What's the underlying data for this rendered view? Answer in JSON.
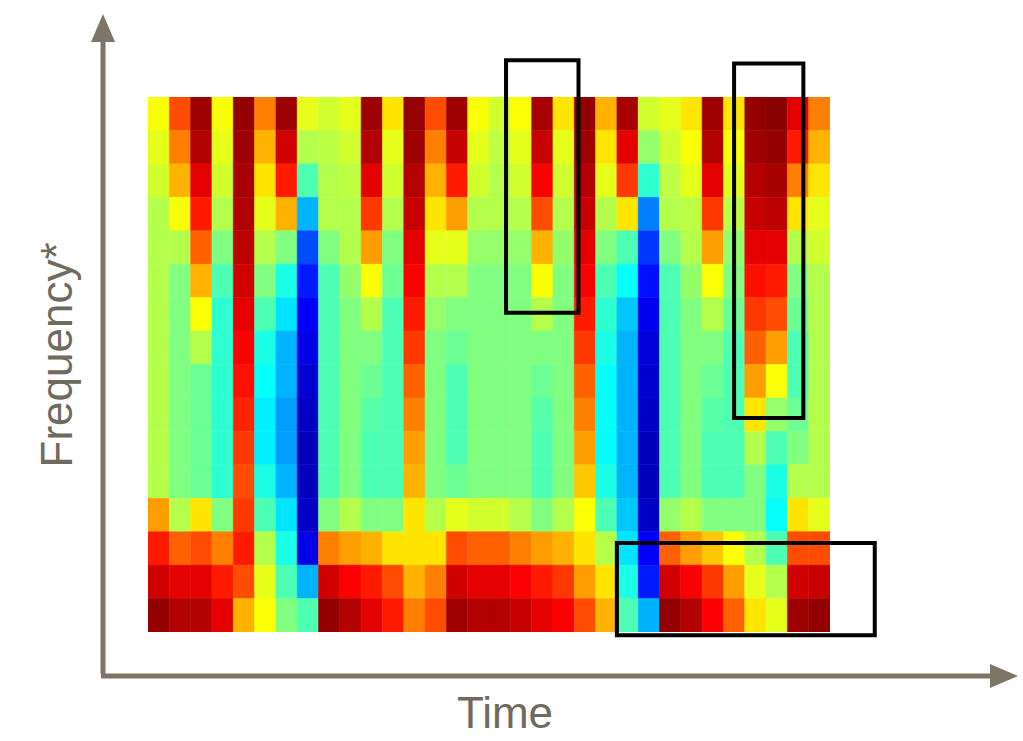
{
  "chart_data": {
    "type": "heatmap",
    "x_label": "Time",
    "y_label": "Frequency*",
    "tick_labels": false,
    "xlim": [
      0,
      32
    ],
    "ylim": [
      0,
      16
    ],
    "color_range": [
      0,
      1
    ],
    "x": [
      0,
      1,
      2,
      3,
      4,
      5,
      6,
      7,
      8,
      9,
      10,
      11,
      12,
      13,
      14,
      15,
      16,
      17,
      18,
      19,
      20,
      21,
      22,
      23,
      24,
      25,
      26,
      27,
      28,
      29,
      30,
      31
    ],
    "y": [
      15,
      14,
      13,
      12,
      11,
      10,
      9,
      8,
      7,
      6,
      5,
      4,
      3,
      2,
      1,
      0
    ],
    "cells": [
      [
        0.62,
        0.6,
        0.58,
        0.55,
        0.55,
        0.55,
        0.55,
        0.55,
        0.55,
        0.55,
        0.55,
        0.55,
        0.72,
        0.85,
        0.92,
        0.98
      ],
      [
        0.8,
        0.75,
        0.7,
        0.62,
        0.55,
        0.5,
        0.5,
        0.5,
        0.5,
        0.5,
        0.5,
        0.5,
        0.55,
        0.78,
        0.9,
        0.95
      ],
      [
        0.97,
        0.95,
        0.9,
        0.85,
        0.78,
        0.7,
        0.62,
        0.55,
        0.48,
        0.48,
        0.48,
        0.48,
        0.65,
        0.8,
        0.9,
        0.95
      ],
      [
        0.62,
        0.6,
        0.58,
        0.55,
        0.5,
        0.45,
        0.42,
        0.42,
        0.42,
        0.42,
        0.42,
        0.42,
        0.5,
        0.75,
        0.85,
        0.9
      ],
      [
        0.98,
        0.97,
        0.96,
        0.95,
        0.94,
        0.92,
        0.9,
        0.88,
        0.86,
        0.84,
        0.82,
        0.8,
        0.82,
        0.85,
        0.8,
        0.7
      ],
      [
        0.75,
        0.7,
        0.65,
        0.6,
        0.55,
        0.5,
        0.45,
        0.4,
        0.38,
        0.36,
        0.36,
        0.4,
        0.45,
        0.55,
        0.6,
        0.62
      ],
      [
        0.97,
        0.92,
        0.85,
        0.7,
        0.5,
        0.4,
        0.35,
        0.3,
        0.3,
        0.28,
        0.28,
        0.3,
        0.35,
        0.4,
        0.45,
        0.5
      ],
      [
        0.6,
        0.55,
        0.45,
        0.3,
        0.2,
        0.15,
        0.12,
        0.1,
        0.08,
        0.07,
        0.06,
        0.06,
        0.07,
        0.1,
        0.3,
        0.45
      ],
      [
        0.58,
        0.56,
        0.55,
        0.55,
        0.5,
        0.45,
        0.45,
        0.45,
        0.45,
        0.45,
        0.45,
        0.45,
        0.5,
        0.75,
        0.92,
        0.98
      ],
      [
        0.6,
        0.58,
        0.56,
        0.55,
        0.55,
        0.52,
        0.5,
        0.5,
        0.5,
        0.5,
        0.5,
        0.5,
        0.55,
        0.72,
        0.88,
        0.95
      ],
      [
        0.97,
        0.95,
        0.9,
        0.82,
        0.72,
        0.62,
        0.55,
        0.5,
        0.48,
        0.46,
        0.45,
        0.45,
        0.5,
        0.7,
        0.85,
        0.9
      ],
      [
        0.65,
        0.6,
        0.58,
        0.55,
        0.5,
        0.48,
        0.45,
        0.45,
        0.45,
        0.45,
        0.45,
        0.45,
        0.5,
        0.65,
        0.8,
        0.85
      ],
      [
        0.98,
        0.97,
        0.95,
        0.93,
        0.9,
        0.88,
        0.85,
        0.82,
        0.78,
        0.75,
        0.72,
        0.7,
        0.65,
        0.65,
        0.7,
        0.75
      ],
      [
        0.8,
        0.75,
        0.7,
        0.65,
        0.6,
        0.55,
        0.52,
        0.5,
        0.5,
        0.5,
        0.5,
        0.5,
        0.55,
        0.65,
        0.75,
        0.8
      ],
      [
        0.97,
        0.93,
        0.85,
        0.72,
        0.6,
        0.55,
        0.5,
        0.48,
        0.45,
        0.45,
        0.45,
        0.48,
        0.6,
        0.8,
        0.92,
        0.97
      ],
      [
        0.62,
        0.6,
        0.58,
        0.55,
        0.52,
        0.5,
        0.5,
        0.5,
        0.5,
        0.5,
        0.5,
        0.5,
        0.58,
        0.78,
        0.9,
        0.95
      ],
      [
        0.58,
        0.56,
        0.55,
        0.55,
        0.52,
        0.5,
        0.5,
        0.5,
        0.5,
        0.5,
        0.5,
        0.5,
        0.58,
        0.78,
        0.9,
        0.95
      ],
      [
        0.62,
        0.6,
        0.58,
        0.55,
        0.52,
        0.5,
        0.5,
        0.5,
        0.5,
        0.5,
        0.5,
        0.5,
        0.55,
        0.75,
        0.88,
        0.93
      ],
      [
        0.96,
        0.93,
        0.88,
        0.8,
        0.7,
        0.62,
        0.55,
        0.5,
        0.48,
        0.46,
        0.45,
        0.45,
        0.5,
        0.72,
        0.85,
        0.9
      ],
      [
        0.65,
        0.6,
        0.58,
        0.55,
        0.52,
        0.5,
        0.5,
        0.5,
        0.5,
        0.5,
        0.5,
        0.5,
        0.55,
        0.7,
        0.82,
        0.88
      ],
      [
        0.98,
        0.97,
        0.95,
        0.93,
        0.9,
        0.88,
        0.85,
        0.82,
        0.78,
        0.75,
        0.72,
        0.68,
        0.62,
        0.65,
        0.72,
        0.8
      ],
      [
        0.7,
        0.65,
        0.6,
        0.55,
        0.5,
        0.45,
        0.42,
        0.4,
        0.38,
        0.38,
        0.38,
        0.4,
        0.45,
        0.55,
        0.65,
        0.7
      ],
      [
        0.96,
        0.9,
        0.82,
        0.65,
        0.45,
        0.38,
        0.32,
        0.3,
        0.3,
        0.3,
        0.3,
        0.3,
        0.32,
        0.35,
        0.4,
        0.45
      ],
      [
        0.58,
        0.52,
        0.42,
        0.25,
        0.18,
        0.14,
        0.11,
        0.09,
        0.08,
        0.07,
        0.06,
        0.06,
        0.07,
        0.12,
        0.15,
        0.3
      ],
      [
        0.6,
        0.58,
        0.56,
        0.55,
        0.5,
        0.45,
        0.45,
        0.45,
        0.45,
        0.45,
        0.45,
        0.45,
        0.52,
        0.78,
        0.92,
        0.98
      ],
      [
        0.65,
        0.62,
        0.6,
        0.56,
        0.55,
        0.52,
        0.5,
        0.5,
        0.5,
        0.5,
        0.5,
        0.5,
        0.55,
        0.72,
        0.88,
        0.95
      ],
      [
        0.97,
        0.95,
        0.9,
        0.82,
        0.72,
        0.62,
        0.55,
        0.5,
        0.48,
        0.46,
        0.45,
        0.45,
        0.5,
        0.68,
        0.82,
        0.88
      ],
      [
        0.65,
        0.62,
        0.6,
        0.56,
        0.52,
        0.5,
        0.48,
        0.45,
        0.45,
        0.45,
        0.45,
        0.45,
        0.5,
        0.62,
        0.72,
        0.78
      ],
      [
        0.98,
        0.97,
        0.95,
        0.93,
        0.9,
        0.86,
        0.82,
        0.78,
        0.72,
        0.65,
        0.55,
        0.5,
        0.5,
        0.55,
        0.6,
        0.65
      ],
      [
        0.99,
        0.98,
        0.96,
        0.94,
        0.9,
        0.85,
        0.8,
        0.72,
        0.62,
        0.52,
        0.45,
        0.4,
        0.38,
        0.45,
        0.55,
        0.6
      ],
      [
        0.9,
        0.85,
        0.75,
        0.65,
        0.55,
        0.5,
        0.48,
        0.45,
        0.45,
        0.48,
        0.5,
        0.55,
        0.65,
        0.8,
        0.92,
        0.97
      ],
      [
        0.75,
        0.7,
        0.65,
        0.6,
        0.58,
        0.55,
        0.55,
        0.55,
        0.55,
        0.55,
        0.55,
        0.55,
        0.6,
        0.8,
        0.93,
        0.98
      ]
    ],
    "highlights": [
      {
        "x": [
          16.8,
          20.2
        ],
        "y": [
          9.55,
          17.1
        ]
      },
      {
        "x": [
          27.5,
          30.75
        ],
        "y": [
          6.4,
          17.0
        ]
      },
      {
        "x": [
          22.0,
          34.1
        ],
        "y": [
          -0.1,
          2.66
        ]
      }
    ]
  }
}
